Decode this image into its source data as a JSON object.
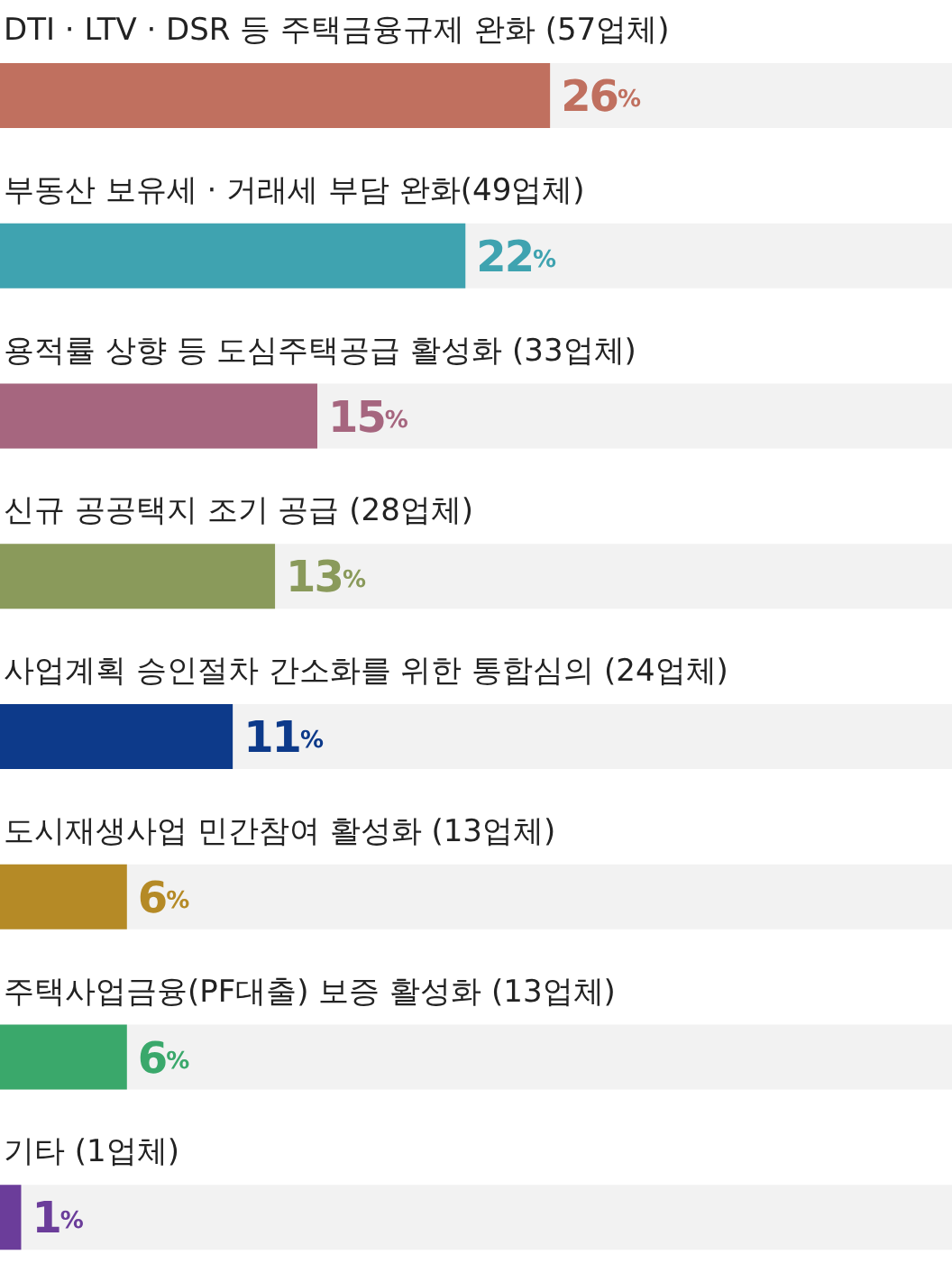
{
  "chart_data": {
    "type": "bar",
    "orientation": "horizontal",
    "categories": [
      "DTI · LTV · DSR 등 주택금융규제 완화 (57업체)",
      "부동산 보유세 · 거래세 부담 완화(49업체)",
      "용적률 상향 등 도심주택공급 활성화 (33업체)",
      "신규 공공택지 조기 공급 (28업체)",
      "사업계획 승인절차 간소화를 위한 통합심의 (24업체)",
      "도시재생사업 민간참여 활성화 (13업체)",
      "주택사업금융(PF대출) 보증 활성화 (13업체)",
      "기타 (1업체)"
    ],
    "values": [
      26,
      22,
      15,
      13,
      11,
      6,
      6,
      1
    ],
    "colors": [
      "#c0705f",
      "#3fa3b0",
      "#a6667f",
      "#8a9a5b",
      "#0d3a8a",
      "#b58a26",
      "#3aa86b",
      "#6b3d9a"
    ],
    "value_labels": [
      "26%",
      "22%",
      "15%",
      "13%",
      "11%",
      "6%",
      "6%",
      "1%"
    ],
    "xlim": [
      0,
      45
    ]
  }
}
